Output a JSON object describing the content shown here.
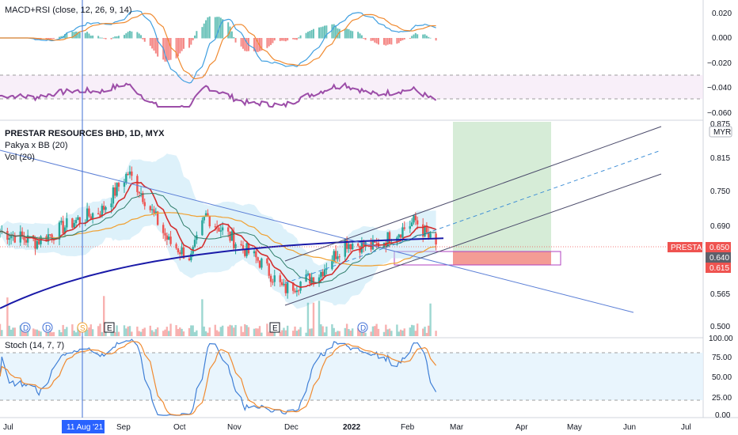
{
  "panels": {
    "macd_label": "MACD+RSI (close, 12, 26, 9, 14)",
    "title": "PRESTAR RESOURCES BHD, 1D, MYX",
    "bb_label": "Pakya x BB (20)",
    "vol_label": "Vol (20)",
    "stoch_label": "Stoch (14, 7, 7)"
  },
  "price_tags": {
    "symbol": "PRESTAR",
    "last": "0.650",
    "p640": "0.640",
    "p615": "0.615",
    "currency": "MYR"
  },
  "axes": {
    "macd_ticks": [
      "0.020",
      "0.000",
      "−0.020",
      "−0.040",
      "−0.060"
    ],
    "price_ticks": [
      "0.875",
      "0.815",
      "0.750",
      "0.690",
      "0.565",
      "0.500"
    ],
    "stoch_ticks": [
      "100.00",
      "75.00",
      "50.00",
      "25.00",
      "0.00"
    ],
    "months": [
      "Jul",
      "Sep",
      "Oct",
      "Nov",
      "Dec",
      "2022",
      "Feb",
      "Mar",
      "Apr",
      "May",
      "Jun",
      "Jul"
    ],
    "cursor_date": "11 Aug '21"
  },
  "events": [
    {
      "name": "dividend-marker",
      "label": "D"
    },
    {
      "name": "dividend-marker",
      "label": "D"
    },
    {
      "name": "split-marker",
      "label": "S"
    },
    {
      "name": "earnings-marker",
      "label": "E"
    },
    {
      "name": "earnings-marker",
      "label": "E"
    },
    {
      "name": "dividend-marker",
      "label": "D"
    }
  ],
  "colors": {
    "up": "#26a69a",
    "down": "#ef5350",
    "bb_fill": "#b3e0f5",
    "ma_red": "#d32f2f",
    "ma_orange": "#f0a030",
    "ma_blue": "#1a1aa8",
    "trend": "#5b7fd6",
    "rsi": "#9c4da8",
    "stoch_k": "#3f7fd6",
    "stoch_d": "#f08a30",
    "target": "#c8e6c9",
    "stop": "#f28b82"
  },
  "chart_data": {
    "type": "candlestick",
    "symbol": "PRESTAR RESOURCES BHD",
    "interval": "1D",
    "exchange": "MYX",
    "x_range": [
      "2021-07-01",
      "2022-07-15"
    ],
    "price_range": [
      0.49,
      0.885
    ],
    "key_closes": [
      {
        "date": "2021-07-01",
        "close": 0.68
      },
      {
        "date": "2021-07-20",
        "close": 0.66
      },
      {
        "date": "2021-08-11",
        "close": 0.7
      },
      {
        "date": "2021-08-25",
        "close": 0.72
      },
      {
        "date": "2021-09-08",
        "close": 0.79
      },
      {
        "date": "2021-09-14",
        "close": 0.76
      },
      {
        "date": "2021-09-30",
        "close": 0.66
      },
      {
        "date": "2021-10-12",
        "close": 0.63
      },
      {
        "date": "2021-10-20",
        "close": 0.71
      },
      {
        "date": "2021-11-05",
        "close": 0.66
      },
      {
        "date": "2021-11-19",
        "close": 0.62
      },
      {
        "date": "2021-12-01",
        "close": 0.57
      },
      {
        "date": "2021-12-20",
        "close": 0.6
      },
      {
        "date": "2022-01-03",
        "close": 0.66
      },
      {
        "date": "2022-01-18",
        "close": 0.65
      },
      {
        "date": "2022-02-01",
        "close": 0.68
      },
      {
        "date": "2022-02-10",
        "close": 0.7
      },
      {
        "date": "2022-02-21",
        "close": 0.65
      }
    ],
    "position": {
      "entry": 0.64,
      "stop": 0.615,
      "target": 0.875
    },
    "last_price": 0.65,
    "oscillators": {
      "macd_ticks": [
        0.02,
        0.0,
        -0.02,
        -0.04,
        -0.06
      ],
      "stoch_levels": [
        20,
        80
      ]
    }
  }
}
